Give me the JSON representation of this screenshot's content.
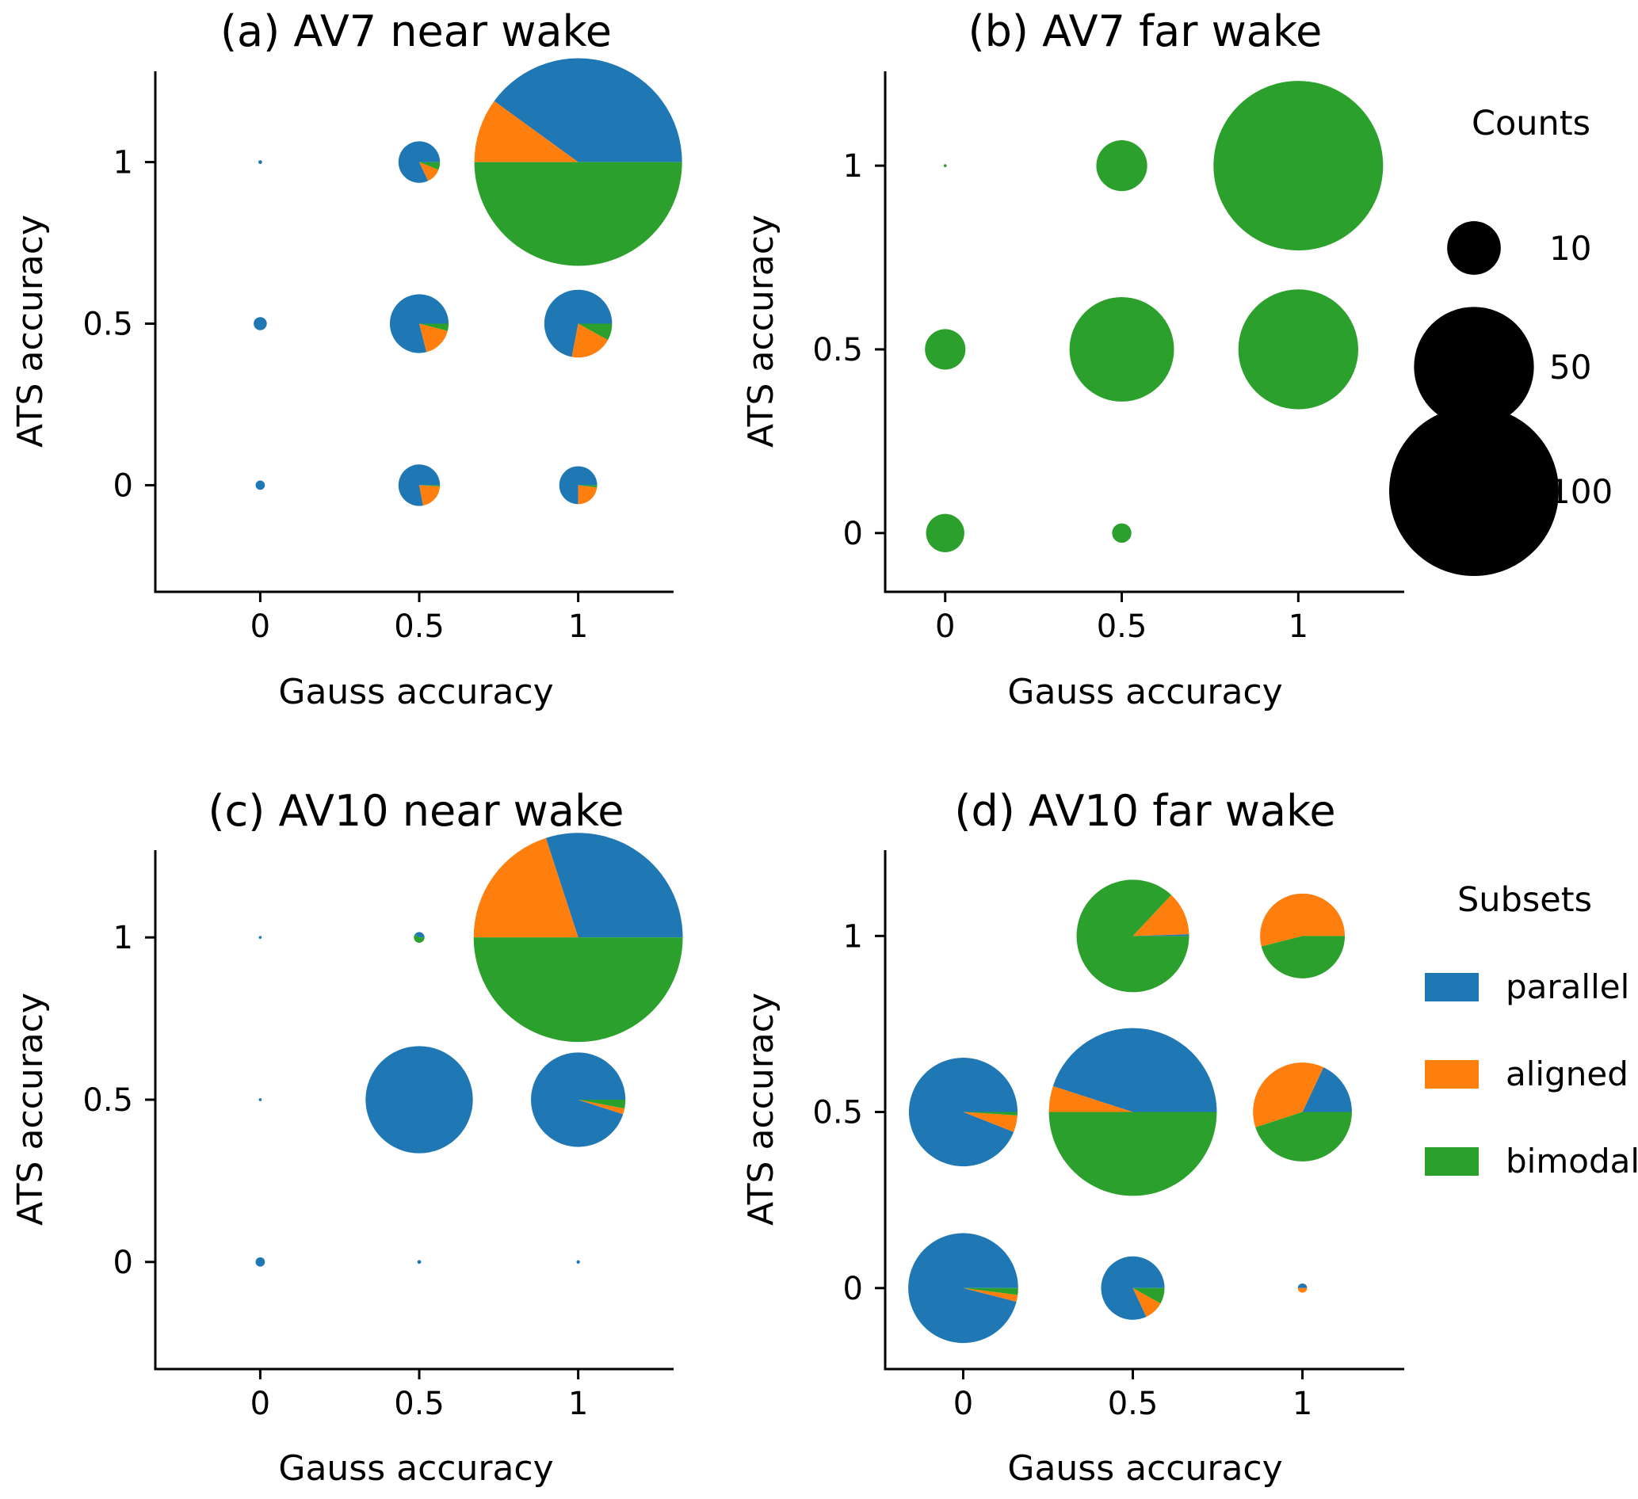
{
  "colors": {
    "parallel": "#1f77b4",
    "aligned": "#ff7f0e",
    "bimodal": "#2ca02c",
    "size_marker": "#000000"
  },
  "legends": {
    "counts": {
      "title": "Counts",
      "entries": [
        {
          "label": "10",
          "value": 10
        },
        {
          "label": "50",
          "value": 50
        },
        {
          "label": "100",
          "value": 100
        }
      ]
    },
    "subsets": {
      "title": "Subsets",
      "entries": [
        {
          "key": "parallel",
          "label": "parallel"
        },
        {
          "key": "aligned",
          "label": "aligned"
        },
        {
          "key": "bimodal",
          "label": "bimodal"
        }
      ]
    }
  },
  "chart_data": [
    {
      "type": "scatter",
      "subtype": "pie-scatter",
      "title": "(a) AV7 near wake",
      "xlabel": "Gauss accuracy",
      "ylabel": "ATS accuracy",
      "xticks": [
        0,
        0.5,
        1
      ],
      "xticklabels": [
        "0",
        "0.5",
        "1"
      ],
      "yticks": [
        0,
        0.5,
        1
      ],
      "yticklabels": [
        "0",
        "0.5",
        "1"
      ],
      "xlim": [
        -0.33,
        1.3
      ],
      "ylim": [
        -0.33,
        1.33
      ],
      "points": [
        {
          "x": 0,
          "y": 1,
          "count": 0.05,
          "parallel": 1,
          "aligned": 0,
          "bimodal": 0
        },
        {
          "x": 0.5,
          "y": 1,
          "count": 6,
          "parallel": 0.82,
          "aligned": 0.12,
          "bimodal": 0.06
        },
        {
          "x": 1,
          "y": 1,
          "count": 150,
          "parallel": 0.4,
          "aligned": 0.1,
          "bimodal": 0.5
        },
        {
          "x": 0,
          "y": 0.5,
          "count": 0.6,
          "parallel": 1,
          "aligned": 0,
          "bimodal": 0
        },
        {
          "x": 0.5,
          "y": 0.5,
          "count": 12,
          "parallel": 0.79,
          "aligned": 0.17,
          "bimodal": 0.04
        },
        {
          "x": 1,
          "y": 0.5,
          "count": 16,
          "parallel": 0.72,
          "aligned": 0.2,
          "bimodal": 0.08
        },
        {
          "x": 0,
          "y": 0,
          "count": 0.3,
          "parallel": 1,
          "aligned": 0,
          "bimodal": 0
        },
        {
          "x": 0.5,
          "y": 0,
          "count": 6,
          "parallel": 0.78,
          "aligned": 0.21,
          "bimodal": 0.01
        },
        {
          "x": 1,
          "y": 0,
          "count": 5,
          "parallel": 0.75,
          "aligned": 0.23,
          "bimodal": 0.02
        }
      ]
    },
    {
      "type": "scatter",
      "subtype": "pie-scatter",
      "title": "(b) AV7 far wake",
      "xlabel": "Gauss accuracy",
      "ylabel": "ATS accuracy",
      "xticks": [
        0,
        0.5,
        1
      ],
      "xticklabels": [
        "0",
        "0.5",
        "1"
      ],
      "yticks": [
        0,
        0.5,
        1
      ],
      "yticklabels": [
        "0",
        "0.5",
        "1"
      ],
      "xlim": [
        -0.17,
        1.3
      ],
      "ylim": [
        -0.16,
        1.3
      ],
      "points": [
        {
          "x": 0,
          "y": 1,
          "count": 0.03,
          "parallel": 0,
          "aligned": 0,
          "bimodal": 1
        },
        {
          "x": 0.5,
          "y": 1,
          "count": 9,
          "parallel": 0,
          "aligned": 0,
          "bimodal": 1
        },
        {
          "x": 1,
          "y": 1,
          "count": 100,
          "parallel": 0,
          "aligned": 0,
          "bimodal": 1
        },
        {
          "x": 0,
          "y": 0.5,
          "count": 5.7,
          "parallel": 0,
          "aligned": 0,
          "bimodal": 1
        },
        {
          "x": 0.5,
          "y": 0.5,
          "count": 38,
          "parallel": 0,
          "aligned": 0,
          "bimodal": 1
        },
        {
          "x": 1,
          "y": 0.5,
          "count": 50,
          "parallel": 0,
          "aligned": 0,
          "bimodal": 1
        },
        {
          "x": 0,
          "y": 0,
          "count": 5.1,
          "parallel": 0,
          "aligned": 0,
          "bimodal": 1
        },
        {
          "x": 0.5,
          "y": 0,
          "count": 1.3,
          "parallel": 0,
          "aligned": 0,
          "bimodal": 1
        }
      ]
    },
    {
      "type": "scatter",
      "subtype": "pie-scatter",
      "title": "(c) AV10 near wake",
      "xlabel": "Gauss accuracy",
      "ylabel": "ATS accuracy",
      "xticks": [
        0,
        0.5,
        1
      ],
      "xticklabels": [
        "0",
        "0.5",
        "1"
      ],
      "yticks": [
        0,
        0.5,
        1
      ],
      "yticklabels": [
        "0",
        "0.5",
        "1"
      ],
      "xlim": [
        -0.33,
        1.3
      ],
      "ylim": [
        -0.33,
        1.33
      ],
      "points": [
        {
          "x": 0,
          "y": 1,
          "count": 0.03,
          "parallel": 1,
          "aligned": 0,
          "bimodal": 0
        },
        {
          "x": 0.5,
          "y": 1,
          "count": 0.4,
          "parallel": 0.4,
          "aligned": 0,
          "bimodal": 0.6
        },
        {
          "x": 1,
          "y": 1,
          "count": 152,
          "parallel": 0.3,
          "aligned": 0.2,
          "bimodal": 0.5
        },
        {
          "x": 0,
          "y": 0.5,
          "count": 0.03,
          "parallel": 1,
          "aligned": 0,
          "bimodal": 0
        },
        {
          "x": 0.5,
          "y": 0.5,
          "count": 40,
          "parallel": 1,
          "aligned": 0,
          "bimodal": 0
        },
        {
          "x": 1,
          "y": 0.5,
          "count": 31,
          "parallel": 0.95,
          "aligned": 0.02,
          "bimodal": 0.03
        },
        {
          "x": 0,
          "y": 0,
          "count": 0.3,
          "parallel": 1,
          "aligned": 0,
          "bimodal": 0
        },
        {
          "x": 0.5,
          "y": 0,
          "count": 0.05,
          "parallel": 1,
          "aligned": 0,
          "bimodal": 0
        },
        {
          "x": 1,
          "y": 0,
          "count": 0.04,
          "parallel": 1,
          "aligned": 0,
          "bimodal": 0
        }
      ]
    },
    {
      "type": "scatter",
      "subtype": "pie-scatter",
      "title": "(d) AV10 far wake",
      "xlabel": "Gauss accuracy",
      "ylabel": "ATS accuracy",
      "xticks": [
        0,
        0.5,
        1
      ],
      "xticklabels": [
        "0",
        "0.5",
        "1"
      ],
      "yticks": [
        0,
        0.5,
        1
      ],
      "yticklabels": [
        "0",
        "0.5",
        "1"
      ],
      "xlim": [
        -0.23,
        1.3
      ],
      "ylim": [
        -0.23,
        1.3
      ],
      "points": [
        {
          "x": 0.5,
          "y": 1,
          "count": 44,
          "parallel": 0.005,
          "aligned": 0.125,
          "bimodal": 0.87
        },
        {
          "x": 1,
          "y": 1,
          "count": 25,
          "parallel": 0,
          "aligned": 0.54,
          "bimodal": 0.46
        },
        {
          "x": 0,
          "y": 0.5,
          "count": 41,
          "parallel": 0.94,
          "aligned": 0.05,
          "bimodal": 0.01
        },
        {
          "x": 0.5,
          "y": 0.5,
          "count": 98,
          "parallel": 0.45,
          "aligned": 0.05,
          "bimodal": 0.5
        },
        {
          "x": 1,
          "y": 0.5,
          "count": 34,
          "parallel": 0.18,
          "aligned": 0.37,
          "bimodal": 0.45
        },
        {
          "x": 0,
          "y": 0,
          "count": 42,
          "parallel": 0.96,
          "aligned": 0.02,
          "bimodal": 0.02
        },
        {
          "x": 0.5,
          "y": 0,
          "count": 14,
          "parallel": 0.82,
          "aligned": 0.1,
          "bimodal": 0.08
        },
        {
          "x": 1,
          "y": 0,
          "count": 0.3,
          "parallel": 0.5,
          "aligned": 0.5,
          "bimodal": 0
        }
      ]
    }
  ]
}
